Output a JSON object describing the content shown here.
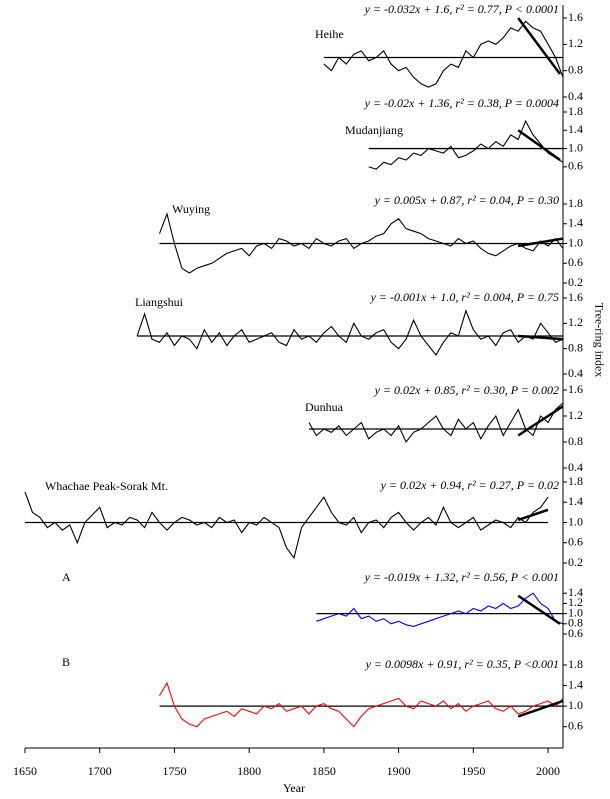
{
  "chart_data": {
    "type": "line",
    "xlabel": "Year",
    "ylabel": "Tree-ring index",
    "xlim": [
      1650,
      2010
    ],
    "xticks": [
      1650,
      1700,
      1750,
      1800,
      1850,
      1900,
      1950,
      2000
    ],
    "panels": [
      {
        "title": "Heihe",
        "equation": "y = -0.032x + 1.6,  r² = 0.77,  P < 0.0001",
        "ylim": [
          0.4,
          1.6
        ],
        "yticks": [
          0.4,
          0.8,
          1.2,
          1.6
        ],
        "reference": 1.0,
        "x": [
          1850,
          1855,
          1860,
          1865,
          1870,
          1875,
          1880,
          1885,
          1890,
          1895,
          1900,
          1905,
          1910,
          1915,
          1920,
          1925,
          1930,
          1935,
          1940,
          1945,
          1950,
          1955,
          1960,
          1965,
          1970,
          1975,
          1980,
          1985,
          1990,
          1995,
          2000,
          2005,
          2010
        ],
        "series": [
          {
            "color": "#000000",
            "values": [
              0.9,
              0.8,
              1.0,
              0.9,
              1.05,
              1.1,
              0.95,
              1.0,
              1.1,
              0.9,
              0.8,
              0.85,
              0.7,
              0.6,
              0.55,
              0.6,
              0.8,
              0.9,
              0.85,
              1.1,
              1.0,
              1.2,
              1.25,
              1.2,
              1.3,
              1.45,
              1.4,
              1.55,
              1.45,
              1.4,
              1.2,
              1.0,
              0.7
            ]
          }
        ],
        "trend": {
          "x": [
            1980,
            2008
          ],
          "values": [
            1.6,
            0.75
          ]
        }
      },
      {
        "title": "Mudanjiang",
        "equation": "y = -0.02x + 1.36,  r² = 0.38,  P = 0.0004",
        "ylim": [
          0.4,
          1.8
        ],
        "yticks": [
          0.6,
          {
            "value": 1,
            "label": "1.0"
          },
          1.4,
          1.8
        ],
        "reference": 1.0,
        "x": [
          1880,
          1885,
          1890,
          1895,
          1900,
          1905,
          1910,
          1915,
          1920,
          1925,
          1930,
          1935,
          1940,
          1945,
          1950,
          1955,
          1960,
          1965,
          1970,
          1975,
          1980,
          1985,
          1990,
          1995,
          2000,
          2005,
          2010
        ],
        "series": [
          {
            "color": "#000000",
            "values": [
              0.6,
              0.55,
              0.7,
              0.65,
              0.8,
              0.75,
              0.9,
              0.85,
              1.0,
              0.95,
              0.9,
              1.05,
              0.8,
              0.85,
              0.95,
              1.1,
              1.0,
              1.15,
              1.05,
              1.3,
              1.2,
              1.6,
              1.3,
              1.1,
              0.9,
              0.8,
              0.7
            ]
          }
        ],
        "trend": {
          "x": [
            1980,
            2008
          ],
          "values": [
            1.4,
            0.75
          ]
        }
      },
      {
        "title": "Wuying",
        "equation": "y = 0.005x + 0.87,  r² = 0.04,  P = 0.30",
        "ylim": [
          0.2,
          1.8
        ],
        "yticks": [
          0.2,
          0.6,
          {
            "value": 1,
            "label": "1.0"
          },
          1.4,
          1.8
        ],
        "reference": 1.0,
        "x": [
          1740,
          1745,
          1750,
          1755,
          1760,
          1765,
          1770,
          1775,
          1780,
          1785,
          1790,
          1795,
          1800,
          1805,
          1810,
          1815,
          1820,
          1825,
          1830,
          1835,
          1840,
          1845,
          1850,
          1855,
          1860,
          1865,
          1870,
          1875,
          1880,
          1885,
          1890,
          1895,
          1900,
          1905,
          1910,
          1915,
          1920,
          1925,
          1930,
          1935,
          1940,
          1945,
          1950,
          1955,
          1960,
          1965,
          1970,
          1975,
          1980,
          1985,
          1990,
          1995,
          2000,
          2005,
          2010
        ],
        "series": [
          {
            "color": "#000000",
            "values": [
              1.2,
              1.6,
              1.0,
              0.5,
              0.4,
              0.5,
              0.55,
              0.6,
              0.7,
              0.8,
              0.85,
              0.9,
              0.75,
              0.95,
              1.0,
              0.9,
              1.1,
              1.05,
              0.95,
              1.0,
              0.9,
              1.1,
              1.0,
              0.95,
              1.05,
              1.1,
              0.9,
              1.0,
              1.05,
              1.15,
              1.2,
              1.4,
              1.5,
              1.3,
              1.25,
              1.2,
              1.1,
              1.05,
              1.0,
              0.95,
              1.1,
              1.0,
              1.05,
              0.9,
              0.8,
              0.75,
              0.85,
              0.95,
              1.0,
              0.9,
              0.85,
              1.05,
              0.95,
              1.1,
              0.9
            ]
          }
        ],
        "trend": {
          "x": [
            1980,
            2010
          ],
          "values": [
            0.95,
            1.1
          ]
        }
      },
      {
        "title": "Liangshui",
        "equation": "y = -0.001x + 1.0,  r² = 0.004,  P = 0.75",
        "ylim": [
          0.4,
          1.6
        ],
        "yticks": [
          0.4,
          0.8,
          1.2,
          1.6
        ],
        "reference": 1.0,
        "x": [
          1725,
          1730,
          1735,
          1740,
          1745,
          1750,
          1755,
          1760,
          1765,
          1770,
          1775,
          1780,
          1785,
          1790,
          1795,
          1800,
          1805,
          1810,
          1815,
          1820,
          1825,
          1830,
          1835,
          1840,
          1845,
          1850,
          1855,
          1860,
          1865,
          1870,
          1875,
          1880,
          1885,
          1890,
          1895,
          1900,
          1905,
          1910,
          1915,
          1920,
          1925,
          1930,
          1935,
          1940,
          1945,
          1950,
          1955,
          1960,
          1965,
          1970,
          1975,
          1980,
          1985,
          1990,
          1995,
          2000,
          2005,
          2010
        ],
        "series": [
          {
            "color": "#000000",
            "values": [
              1.0,
              1.35,
              0.95,
              0.9,
              1.05,
              0.85,
              1.0,
              0.95,
              0.8,
              1.1,
              0.9,
              1.05,
              0.85,
              1.0,
              1.1,
              0.9,
              0.95,
              1.0,
              1.05,
              0.9,
              0.85,
              1.1,
              0.95,
              1.0,
              0.9,
              1.05,
              1.15,
              1.0,
              0.9,
              1.2,
              1.0,
              0.95,
              1.05,
              1.1,
              0.9,
              0.8,
              0.95,
              1.25,
              1.0,
              0.85,
              0.7,
              0.9,
              1.05,
              1.0,
              1.4,
              1.1,
              0.95,
              1.0,
              0.85,
              1.05,
              1.1,
              0.9,
              1.0,
              0.95,
              1.2,
              1.05,
              0.9,
              0.95
            ]
          }
        ],
        "trend": {
          "x": [
            1980,
            2010
          ],
          "values": [
            1.0,
            0.95
          ]
        }
      },
      {
        "title": "Dunhua",
        "equation": "y = 0.02x + 0.85,  r² = 0.30,  P = 0.002",
        "ylim": [
          0.4,
          1.6
        ],
        "yticks": [
          0.4,
          0.8,
          1.2,
          1.6
        ],
        "reference": 1.0,
        "x": [
          1840,
          1845,
          1850,
          1855,
          1860,
          1865,
          1870,
          1875,
          1880,
          1885,
          1890,
          1895,
          1900,
          1905,
          1910,
          1915,
          1920,
          1925,
          1930,
          1935,
          1940,
          1945,
          1950,
          1955,
          1960,
          1965,
          1970,
          1975,
          1980,
          1985,
          1990,
          1995,
          2000,
          2005,
          2010
        ],
        "series": [
          {
            "color": "#000000",
            "values": [
              1.1,
              0.9,
              1.0,
              0.95,
              1.05,
              0.9,
              1.0,
              1.1,
              0.85,
              0.95,
              1.0,
              0.9,
              1.05,
              0.8,
              0.95,
              1.0,
              1.1,
              1.2,
              1.0,
              0.9,
              1.15,
              1.0,
              1.1,
              0.85,
              1.05,
              1.2,
              0.9,
              1.1,
              1.3,
              1.0,
              0.9,
              1.2,
              1.1,
              1.3,
              1.4
            ]
          }
        ],
        "trend": {
          "x": [
            1980,
            2010
          ],
          "values": [
            0.9,
            1.35
          ]
        }
      },
      {
        "title": "Whachae Peak-Sorak Mt.",
        "equation": "y = 0.02x + 0.94,  r² = 0.27,  P = 0.02",
        "ylim": [
          0.2,
          1.8
        ],
        "yticks": [
          0.2,
          0.6,
          {
            "value": 1,
            "label": "1.0"
          },
          1.4,
          1.8
        ],
        "reference": 1.0,
        "x": [
          1650,
          1655,
          1660,
          1665,
          1670,
          1675,
          1680,
          1685,
          1690,
          1695,
          1700,
          1705,
          1710,
          1715,
          1720,
          1725,
          1730,
          1735,
          1740,
          1745,
          1750,
          1755,
          1760,
          1765,
          1770,
          1775,
          1780,
          1785,
          1790,
          1795,
          1800,
          1805,
          1810,
          1815,
          1820,
          1825,
          1830,
          1835,
          1840,
          1845,
          1850,
          1855,
          1860,
          1865,
          1870,
          1875,
          1880,
          1885,
          1890,
          1895,
          1900,
          1905,
          1910,
          1915,
          1920,
          1925,
          1930,
          1935,
          1940,
          1945,
          1950,
          1955,
          1960,
          1965,
          1970,
          1975,
          1980,
          1985,
          1990,
          1995,
          2000
        ],
        "series": [
          {
            "color": "#000000",
            "values": [
              1.6,
              1.2,
              1.1,
              0.9,
              1.0,
              0.85,
              0.95,
              0.6,
              1.0,
              1.15,
              1.3,
              0.9,
              1.0,
              0.95,
              1.1,
              1.05,
              0.9,
              1.2,
              1.0,
              0.85,
              1.0,
              1.1,
              1.05,
              0.95,
              1.0,
              0.9,
              1.1,
              1.0,
              1.05,
              0.8,
              1.0,
              0.95,
              1.1,
              1.0,
              0.9,
              0.5,
              0.3,
              0.9,
              1.1,
              1.3,
              1.5,
              1.2,
              1.0,
              0.95,
              1.1,
              0.8,
              1.0,
              1.05,
              0.9,
              1.1,
              1.2,
              1.0,
              0.85,
              1.0,
              1.1,
              0.95,
              1.3,
              1.0,
              0.9,
              1.0,
              1.1,
              0.85,
              0.95,
              1.05,
              1.0,
              0.9,
              1.1,
              1.0,
              1.2,
              1.3,
              1.5
            ]
          }
        ],
        "trend": {
          "x": [
            1980,
            2000
          ],
          "values": [
            1.05,
            1.25
          ]
        }
      },
      {
        "title": "A",
        "equation": "y = -0.019x + 1.32,  r² = 0.56,  P < 0.001",
        "ylim": [
          0.6,
          1.6
        ],
        "yticks": [
          0.6,
          0.8,
          {
            "value": 1,
            "label": "1.0"
          },
          1.2,
          1.4
        ],
        "reference": 1.0,
        "x": [
          1845,
          1850,
          1855,
          1860,
          1865,
          1870,
          1875,
          1880,
          1885,
          1890,
          1895,
          1900,
          1905,
          1910,
          1915,
          1920,
          1925,
          1930,
          1935,
          1940,
          1945,
          1950,
          1955,
          1960,
          1965,
          1970,
          1975,
          1980,
          1985,
          1990,
          1995,
          2000,
          2005,
          2010
        ],
        "series": [
          {
            "color": "#0000ff",
            "values": [
              0.85,
              0.9,
              0.95,
              1.0,
              0.95,
              1.1,
              0.9,
              0.95,
              0.85,
              0.9,
              0.8,
              0.85,
              0.78,
              0.75,
              0.8,
              0.85,
              0.9,
              0.95,
              1.0,
              1.05,
              1.0,
              1.1,
              1.05,
              1.15,
              1.1,
              1.2,
              1.1,
              1.15,
              1.3,
              1.4,
              1.2,
              1.1,
              0.85,
              0.8
            ]
          }
        ],
        "trend": {
          "x": [
            1980,
            2008
          ],
          "values": [
            1.35,
            0.8
          ]
        }
      },
      {
        "title": "B",
        "equation": "y = 0.0098x + 0.91,  r² = 0.35,  P <0.001",
        "ylim": [
          0.4,
          1.8
        ],
        "yticks": [
          0.6,
          {
            "value": 1,
            "label": "1.0"
          },
          1.4,
          1.8
        ],
        "reference": 1.0,
        "x": [
          1740,
          1745,
          1750,
          1755,
          1760,
          1765,
          1770,
          1775,
          1780,
          1785,
          1790,
          1795,
          1800,
          1805,
          1810,
          1815,
          1820,
          1825,
          1830,
          1835,
          1840,
          1845,
          1850,
          1855,
          1860,
          1865,
          1870,
          1875,
          1880,
          1885,
          1890,
          1895,
          1900,
          1905,
          1910,
          1915,
          1920,
          1925,
          1930,
          1935,
          1940,
          1945,
          1950,
          1955,
          1960,
          1965,
          1970,
          1975,
          1980,
          1985,
          1990,
          1995,
          2000,
          2005,
          2010
        ],
        "series": [
          {
            "color": "#ff0000",
            "values": [
              1.2,
              1.45,
              1.0,
              0.75,
              0.65,
              0.6,
              0.75,
              0.8,
              0.85,
              0.9,
              0.8,
              0.95,
              0.9,
              0.85,
              1.0,
              0.95,
              1.05,
              0.9,
              0.95,
              1.0,
              0.85,
              1.0,
              1.05,
              0.95,
              0.9,
              0.75,
              0.6,
              0.8,
              0.95,
              1.0,
              1.05,
              1.1,
              1.15,
              1.0,
              0.95,
              1.1,
              1.05,
              1.0,
              1.1,
              0.95,
              1.05,
              0.9,
              1.0,
              1.05,
              1.1,
              0.95,
              0.9,
              1.0,
              0.85,
              0.9,
              1.0,
              1.05,
              1.1,
              1.0,
              1.15
            ]
          }
        ],
        "trend": {
          "x": [
            1980,
            2010
          ],
          "values": [
            0.8,
            1.1
          ]
        }
      }
    ]
  }
}
